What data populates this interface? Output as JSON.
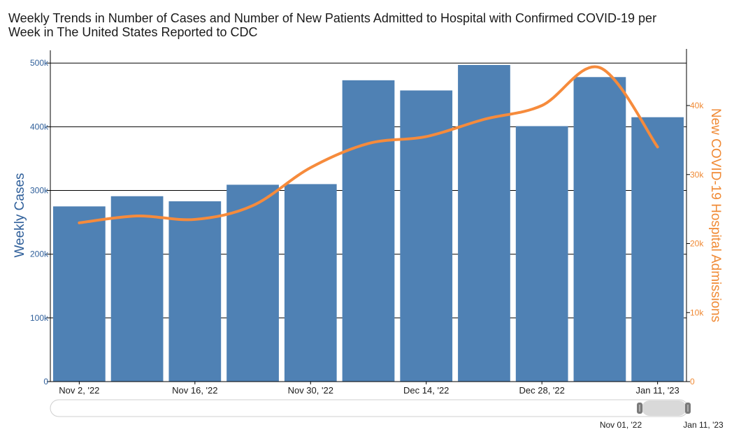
{
  "chart_data": {
    "type": "bar",
    "title_lines": [
      "Weekly Trends in Number of Cases and Number of New Patients Admitted to Hospital with Confirmed COVID-19 per",
      "Week in The United States Reported to CDC"
    ],
    "ylabel_left": "Weekly Cases",
    "ylabel_right": "New COVID-19 Hospital Admissions",
    "ylim_left": [
      0,
      520000
    ],
    "ylim_right": [
      0,
      48000
    ],
    "left_ticks": [
      {
        "value": 0,
        "label": "0"
      },
      {
        "value": 100000,
        "label": "100k"
      },
      {
        "value": 200000,
        "label": "200k"
      },
      {
        "value": 300000,
        "label": "300k"
      },
      {
        "value": 400000,
        "label": "400k"
      },
      {
        "value": 500000,
        "label": "500k"
      }
    ],
    "right_ticks": [
      {
        "value": 0,
        "label": "0"
      },
      {
        "value": 10000,
        "label": "10k"
      },
      {
        "value": 20000,
        "label": "20k"
      },
      {
        "value": 30000,
        "label": "30k"
      },
      {
        "value": 40000,
        "label": "40k"
      }
    ],
    "x_tick_labels": [
      {
        "index": 0,
        "label": "Nov 2, '22"
      },
      {
        "index": 2,
        "label": "Nov 16, '22"
      },
      {
        "index": 4,
        "label": "Nov 30, '22"
      },
      {
        "index": 6,
        "label": "Dec 14, '22"
      },
      {
        "index": 8,
        "label": "Dec 28, '22"
      },
      {
        "index": 10,
        "label": "Jan 11, '23"
      }
    ],
    "categories": [
      "Nov 2, '22",
      "Nov 9, '22",
      "Nov 16, '22",
      "Nov 23, '22",
      "Nov 30, '22",
      "Dec 7, '22",
      "Dec 14, '22",
      "Dec 21, '22",
      "Dec 28, '22",
      "Jan 4, '23",
      "Jan 11, '23"
    ],
    "series": [
      {
        "type": "bar",
        "axis": "left",
        "color": "#4f81b4",
        "values": [
          275000,
          291000,
          283000,
          309000,
          310000,
          473000,
          457000,
          497000,
          401000,
          478000,
          415000
        ]
      },
      {
        "type": "line",
        "axis": "right",
        "color": "#f68b3c",
        "smooth": true,
        "values": [
          23000,
          24000,
          23500,
          25500,
          31000,
          34500,
          35500,
          38000,
          40000,
          45500,
          34000
        ]
      }
    ],
    "grid": true,
    "range_slider": {
      "start_label": "Nov 01, '22",
      "end_label": "Jan 11, '23"
    }
  }
}
